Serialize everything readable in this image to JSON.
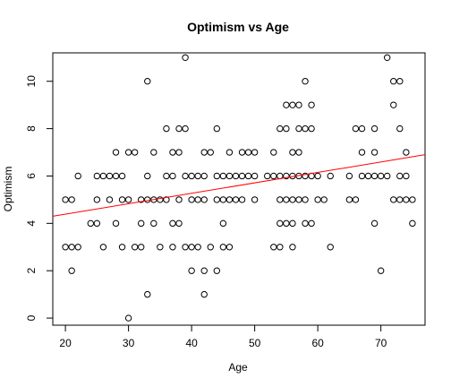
{
  "chart_data": {
    "type": "scatter",
    "title": "Optimism vs Age",
    "xlabel": "Age",
    "ylabel": "Optimism",
    "xlim": [
      18,
      77
    ],
    "ylim": [
      -0.3,
      11.2
    ],
    "x_ticks": [
      20,
      30,
      40,
      50,
      60,
      70
    ],
    "y_ticks": [
      0,
      2,
      4,
      6,
      8,
      10
    ],
    "point_color": "#000000",
    "fit_line_color": "#ff0000",
    "fit_line": {
      "x": [
        18,
        77
      ],
      "y": [
        4.3,
        6.9
      ]
    },
    "points": [
      [
        20,
        3
      ],
      [
        20,
        5
      ],
      [
        21,
        2
      ],
      [
        21,
        3
      ],
      [
        21,
        5
      ],
      [
        22,
        3
      ],
      [
        22,
        6
      ],
      [
        24,
        4
      ],
      [
        25,
        4
      ],
      [
        25,
        5
      ],
      [
        25,
        6
      ],
      [
        26,
        3
      ],
      [
        26,
        6
      ],
      [
        27,
        5
      ],
      [
        27,
        6
      ],
      [
        28,
        4
      ],
      [
        28,
        6
      ],
      [
        28,
        7
      ],
      [
        29,
        3
      ],
      [
        29,
        5
      ],
      [
        29,
        6
      ],
      [
        30,
        0
      ],
      [
        30,
        5
      ],
      [
        30,
        7
      ],
      [
        31,
        3
      ],
      [
        31,
        7
      ],
      [
        32,
        3
      ],
      [
        32,
        4
      ],
      [
        32,
        5
      ],
      [
        33,
        1
      ],
      [
        33,
        5
      ],
      [
        33,
        6
      ],
      [
        33,
        10
      ],
      [
        34,
        4
      ],
      [
        34,
        5
      ],
      [
        34,
        7
      ],
      [
        35,
        3
      ],
      [
        35,
        5
      ],
      [
        36,
        5
      ],
      [
        36,
        6
      ],
      [
        36,
        8
      ],
      [
        37,
        3
      ],
      [
        37,
        4
      ],
      [
        37,
        6
      ],
      [
        37,
        7
      ],
      [
        38,
        4
      ],
      [
        38,
        5
      ],
      [
        38,
        7
      ],
      [
        38,
        8
      ],
      [
        39,
        3
      ],
      [
        39,
        6
      ],
      [
        39,
        8
      ],
      [
        39,
        11
      ],
      [
        40,
        2
      ],
      [
        40,
        3
      ],
      [
        40,
        5
      ],
      [
        40,
        6
      ],
      [
        41,
        3
      ],
      [
        41,
        5
      ],
      [
        41,
        6
      ],
      [
        42,
        1
      ],
      [
        42,
        2
      ],
      [
        42,
        5
      ],
      [
        42,
        6
      ],
      [
        42,
        7
      ],
      [
        43,
        3
      ],
      [
        43,
        7
      ],
      [
        44,
        2
      ],
      [
        44,
        5
      ],
      [
        44,
        6
      ],
      [
        44,
        8
      ],
      [
        45,
        3
      ],
      [
        45,
        4
      ],
      [
        45,
        5
      ],
      [
        45,
        6
      ],
      [
        46,
        3
      ],
      [
        46,
        5
      ],
      [
        46,
        6
      ],
      [
        46,
        7
      ],
      [
        47,
        5
      ],
      [
        47,
        6
      ],
      [
        48,
        5
      ],
      [
        48,
        6
      ],
      [
        48,
        7
      ],
      [
        49,
        6
      ],
      [
        49,
        7
      ],
      [
        50,
        5
      ],
      [
        50,
        6
      ],
      [
        50,
        7
      ],
      [
        52,
        6
      ],
      [
        53,
        3
      ],
      [
        53,
        6
      ],
      [
        53,
        7
      ],
      [
        54,
        3
      ],
      [
        54,
        4
      ],
      [
        54,
        5
      ],
      [
        54,
        6
      ],
      [
        54,
        8
      ],
      [
        55,
        4
      ],
      [
        55,
        5
      ],
      [
        55,
        6
      ],
      [
        55,
        8
      ],
      [
        55,
        9
      ],
      [
        56,
        3
      ],
      [
        56,
        4
      ],
      [
        56,
        5
      ],
      [
        56,
        6
      ],
      [
        56,
        7
      ],
      [
        56,
        9
      ],
      [
        57,
        5
      ],
      [
        57,
        6
      ],
      [
        57,
        7
      ],
      [
        57,
        8
      ],
      [
        57,
        9
      ],
      [
        58,
        4
      ],
      [
        58,
        5
      ],
      [
        58,
        6
      ],
      [
        58,
        8
      ],
      [
        58,
        10
      ],
      [
        59,
        4
      ],
      [
        59,
        6
      ],
      [
        59,
        8
      ],
      [
        59,
        9
      ],
      [
        60,
        5
      ],
      [
        60,
        6
      ],
      [
        61,
        5
      ],
      [
        62,
        3
      ],
      [
        62,
        6
      ],
      [
        65,
        5
      ],
      [
        65,
        6
      ],
      [
        66,
        5
      ],
      [
        66,
        8
      ],
      [
        67,
        6
      ],
      [
        67,
        7
      ],
      [
        67,
        8
      ],
      [
        68,
        6
      ],
      [
        69,
        4
      ],
      [
        69,
        6
      ],
      [
        69,
        7
      ],
      [
        69,
        8
      ],
      [
        70,
        2
      ],
      [
        70,
        6
      ],
      [
        71,
        6
      ],
      [
        71,
        11
      ],
      [
        72,
        5
      ],
      [
        72,
        9
      ],
      [
        72,
        10
      ],
      [
        73,
        5
      ],
      [
        73,
        6
      ],
      [
        73,
        8
      ],
      [
        73,
        10
      ],
      [
        74,
        5
      ],
      [
        74,
        6
      ],
      [
        74,
        7
      ],
      [
        75,
        4
      ],
      [
        75,
        5
      ]
    ]
  }
}
